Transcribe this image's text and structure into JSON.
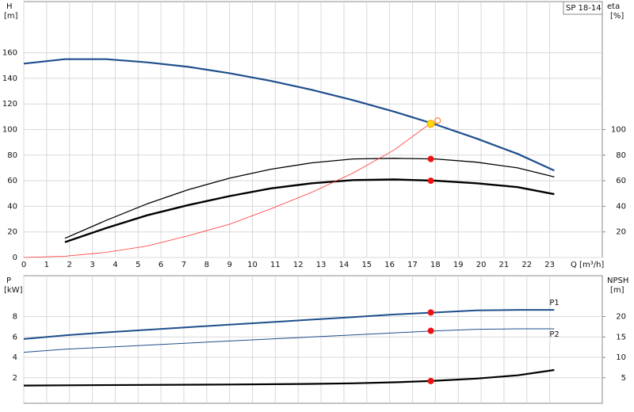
{
  "chart_data": [
    {
      "type": "line",
      "annotation": "SP 18-14",
      "ylabel": "H",
      "yunit": "[m]",
      "y2label": "eta",
      "y2unit": "[%]",
      "xlabel": "Q [m³/h]",
      "xlim": [
        0,
        25.3
      ],
      "xticks": [
        0,
        1,
        2,
        3,
        4,
        5,
        6,
        7,
        8,
        9,
        10,
        11,
        12,
        13,
        14,
        15,
        16,
        17,
        18,
        19,
        20,
        21,
        22,
        23
      ],
      "ylim": [
        0,
        200
      ],
      "yticks": [
        0,
        20,
        40,
        60,
        80,
        100,
        120,
        140,
        160
      ],
      "y2lim": [
        0,
        200
      ],
      "y2ticks": [
        20,
        40,
        60,
        80,
        100
      ],
      "grid": true,
      "series": [
        {
          "color": "#1f4e8c",
          "width": 2.2,
          "axis": "y",
          "x": [
            0,
            1.8,
            3.6,
            5.4,
            7.2,
            9,
            10.8,
            12.6,
            14.4,
            16.2,
            18,
            19.8,
            21.6,
            23.2
          ],
          "values": [
            151.5,
            155,
            155,
            152.5,
            149,
            144,
            138,
            131,
            123,
            114,
            104,
            93,
            81,
            68
          ]
        },
        {
          "color": "#000000",
          "width": 1.3,
          "axis": "y2",
          "x": [
            1.8,
            3.6,
            5.4,
            7.2,
            9,
            10.8,
            12.6,
            14.4,
            16.2,
            18,
            19.8,
            21.6,
            23.2
          ],
          "values": [
            15,
            29,
            42,
            53,
            62,
            69,
            74,
            77,
            77.5,
            77,
            74.5,
            70,
            63
          ]
        },
        {
          "color": "#000000",
          "width": 2.4,
          "axis": "y2",
          "x": [
            1.8,
            3.6,
            5.4,
            7.2,
            9,
            10.8,
            12.6,
            14.4,
            16.2,
            18,
            19.8,
            21.6,
            23.2
          ],
          "values": [
            12,
            23,
            33,
            41,
            48,
            54,
            58,
            60.5,
            61,
            60,
            58,
            55,
            49.5
          ]
        },
        {
          "color": "#ff3333",
          "width": 0.8,
          "axis": "y",
          "x": [
            0,
            1.8,
            3.6,
            5.4,
            7.2,
            9,
            10.8,
            12.6,
            14.4,
            16.2,
            17.8
          ],
          "values": [
            0,
            1,
            4,
            9,
            17,
            26,
            38,
            51,
            66,
            84,
            105
          ]
        }
      ],
      "markers": [
        {
          "x": 17.8,
          "y": 77,
          "color": "#ee1111",
          "fill": "#ee1111"
        },
        {
          "x": 17.8,
          "y": 60,
          "color": "#ee1111",
          "fill": "#ee1111"
        },
        {
          "x": 18.1,
          "y": 107,
          "color": "#ff6600",
          "fill": "none"
        },
        {
          "x": 17.8,
          "y": 104.5,
          "color": "#ff9900",
          "fill": "#ffdd00"
        }
      ]
    },
    {
      "type": "line",
      "ylabel": "P",
      "yunit": "[kW]",
      "y2label": "NPSH",
      "y2unit": "[m]",
      "xlim": [
        0,
        25.3
      ],
      "xticks": [
        0,
        1,
        2,
        3,
        4,
        5,
        6,
        7,
        8,
        9,
        10,
        11,
        12,
        13,
        14,
        15,
        16,
        17,
        18,
        19,
        20,
        21,
        22,
        23
      ],
      "ylim": [
        -0.5,
        12
      ],
      "yticks": [
        2,
        4,
        6,
        8
      ],
      "y2lim": [
        -1.25,
        30
      ],
      "y2ticks": [
        5,
        10,
        15,
        20
      ],
      "grid": true,
      "series": [
        {
          "name": "P1",
          "color": "#1f4e8c",
          "width": 2,
          "axis": "y",
          "x": [
            0,
            1.8,
            3.6,
            5.4,
            7.2,
            9,
            10.8,
            12.6,
            14.4,
            16.2,
            18,
            19.8,
            21.6,
            23.2
          ],
          "values": [
            5.8,
            6.15,
            6.45,
            6.7,
            6.95,
            7.2,
            7.45,
            7.7,
            7.95,
            8.2,
            8.4,
            8.6,
            8.65,
            8.65
          ]
        },
        {
          "name": "P2",
          "color": "#1f4e8c",
          "width": 1,
          "axis": "y",
          "x": [
            0,
            1.8,
            3.6,
            5.4,
            7.2,
            9,
            10.8,
            12.6,
            14.4,
            16.2,
            18,
            19.8,
            21.6,
            23.2
          ],
          "values": [
            4.5,
            4.8,
            5,
            5.2,
            5.4,
            5.6,
            5.8,
            6,
            6.2,
            6.4,
            6.6,
            6.75,
            6.8,
            6.8
          ]
        },
        {
          "color": "#000000",
          "width": 2.2,
          "axis": "y2",
          "x": [
            0,
            1.8,
            5.4,
            9,
            12.6,
            14.4,
            16.2,
            17.8,
            19.8,
            21.6,
            23.2
          ],
          "values": [
            3.1,
            3.15,
            3.25,
            3.35,
            3.5,
            3.65,
            3.9,
            4.2,
            4.8,
            5.6,
            6.9
          ]
        }
      ],
      "markers": [
        {
          "x": 17.8,
          "y": 8.4,
          "color": "#ee1111",
          "fill": "#ee1111"
        },
        {
          "x": 17.8,
          "y": 6.6,
          "color": "#ee1111",
          "fill": "#ee1111"
        },
        {
          "x": 17.8,
          "y": 1.68,
          "color": "#ee1111",
          "fill": "#ee1111"
        }
      ]
    }
  ]
}
